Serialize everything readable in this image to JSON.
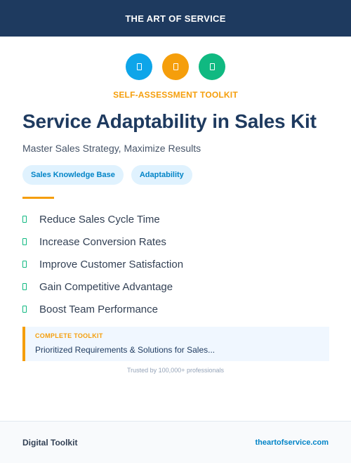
{
  "header": {
    "brand": "THE ART OF SERVICE"
  },
  "icons": [
    {
      "name": "doc-icon",
      "color": "#0ea5e9"
    },
    {
      "name": "doc-icon",
      "color": "#f59e0b"
    },
    {
      "name": "doc-icon",
      "color": "#10b981"
    }
  ],
  "hero": {
    "eyebrow": "SELF-ASSESSMENT TOOLKIT",
    "title": "Service Adaptability in Sales Kit",
    "subtitle": "Master Sales Strategy, Maximize Results"
  },
  "tags": [
    "Sales Knowledge Base",
    "Adaptability"
  ],
  "benefits": [
    "Reduce Sales Cycle Time",
    "Increase Conversion Rates",
    "Improve Customer Satisfaction",
    "Gain Competitive Advantage",
    "Boost Team Performance"
  ],
  "callout": {
    "label": "COMPLETE TOOLKIT",
    "text": "Prioritized Requirements & Solutions for Sales..."
  },
  "trust": "Trusted by 100,000+ professionals",
  "footer": {
    "left": "Digital Toolkit",
    "right": "theartofservice.com"
  },
  "colors": {
    "navy": "#1e3a5f",
    "accent": "#f59e0b",
    "blue": "#0ea5e9",
    "green": "#10b981"
  }
}
